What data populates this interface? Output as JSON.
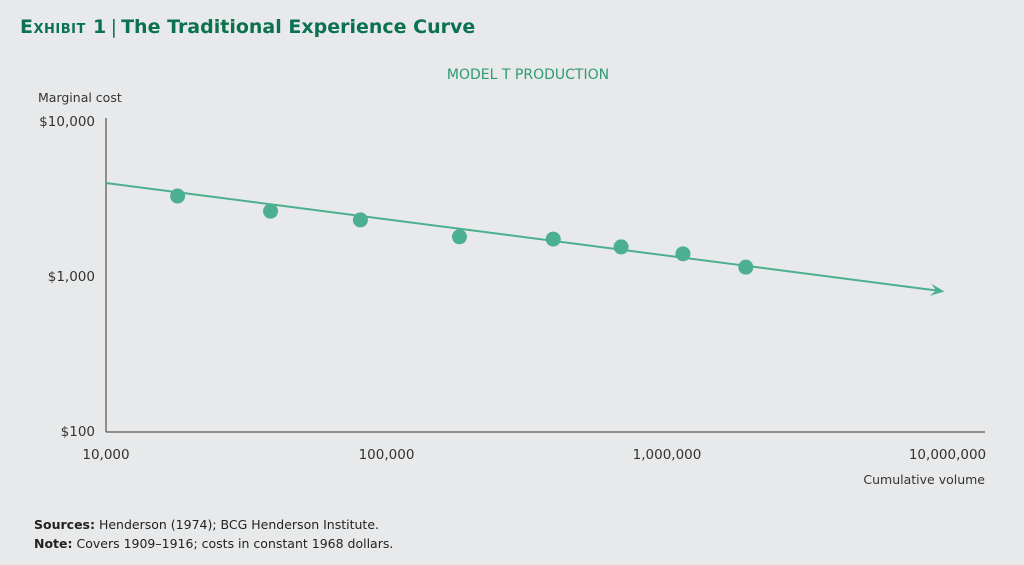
{
  "header": {
    "exhibit": "Exhibit 1",
    "separator": "|",
    "title": "The Traditional Experience Curve"
  },
  "chart_data": {
    "type": "scatter",
    "title": "MODEL T PRODUCTION",
    "ylabel": "Marginal cost",
    "xlabel": "Cumulative volume",
    "x_scale": "log",
    "y_scale": "log",
    "xlim": [
      10000,
      10000000
    ],
    "ylim": [
      100,
      10000
    ],
    "x_ticks": [
      10000,
      100000,
      1000000,
      10000000
    ],
    "x_tick_labels": [
      "10,000",
      "100,000",
      "1,000,000",
      "10,000,000"
    ],
    "y_ticks": [
      100,
      1000,
      10000
    ],
    "y_tick_labels": [
      "$100",
      "$1,000",
      "$10,000"
    ],
    "grid": false,
    "points": [
      {
        "x": 18000,
        "y": 3280
      },
      {
        "x": 38600,
        "y": 2620
      },
      {
        "x": 80700,
        "y": 2300
      },
      {
        "x": 182000,
        "y": 1790
      },
      {
        "x": 393000,
        "y": 1730
      },
      {
        "x": 686000,
        "y": 1540
      },
      {
        "x": 1140000,
        "y": 1390
      },
      {
        "x": 1910000,
        "y": 1140
      }
    ],
    "trend_line": {
      "start": {
        "x": 10000,
        "y": 3980
      },
      "end": {
        "x": 9440000,
        "y": 800
      },
      "arrow": true
    },
    "colors": {
      "points": "#4caf8f",
      "line": "#4caf8f",
      "title": "#2e9a74",
      "header": "#0b7150",
      "axis": "#333333"
    }
  },
  "notes": {
    "sources_label": "Sources:",
    "sources_text": " Henderson (1974); BCG Henderson Institute.",
    "note_label": "Note:",
    "note_text": " Covers 1909–1916; costs in constant 1968 dollars."
  }
}
